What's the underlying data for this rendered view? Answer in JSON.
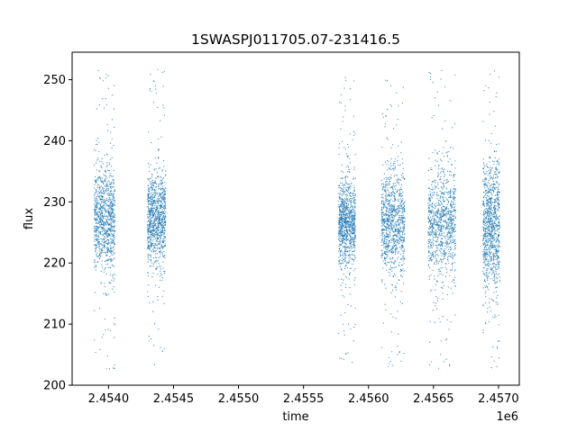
{
  "chart_data": {
    "type": "scatter",
    "title": "1SWASPJ011705.07-231416.5",
    "xlabel": "time",
    "ylabel": "flux",
    "x_offset_label": "1e6",
    "xlim": [
      2453720,
      2457160
    ],
    "ylim": [
      200,
      254.5
    ],
    "x_ticks": [
      2454000,
      2454500,
      2455000,
      2455500,
      2456000,
      2456500,
      2457000
    ],
    "x_tick_labels": [
      "2.4540",
      "2.4545",
      "2.4550",
      "2.4555",
      "2.4560",
      "2.4565",
      "2.4570"
    ],
    "y_ticks": [
      200,
      210,
      220,
      230,
      240,
      250
    ],
    "y_tick_labels": [
      "200",
      "210",
      "220",
      "230",
      "240",
      "250"
    ],
    "grid": false,
    "point_color": "#1f77b4",
    "series": [
      {
        "x_range": [
          2453890,
          2454050
        ],
        "y_center": 227,
        "y_core": [
          219,
          236
        ],
        "y_extent": [
          202.5,
          252
        ]
      },
      {
        "x_range": [
          2454300,
          2454440
        ],
        "y_center": 227,
        "y_core": [
          219,
          234
        ],
        "y_extent": [
          202.5,
          252
        ]
      },
      {
        "x_range": [
          2455770,
          2455900
        ],
        "y_center": 226.5,
        "y_core": [
          219,
          233
        ],
        "y_extent": [
          203,
          251
        ]
      },
      {
        "x_range": [
          2456100,
          2456280
        ],
        "y_center": 226.5,
        "y_core": [
          218,
          235
        ],
        "y_extent": [
          202.5,
          252
        ]
      },
      {
        "x_range": [
          2456460,
          2456670
        ],
        "y_center": 226.5,
        "y_core": [
          218,
          236
        ],
        "y_extent": [
          202.5,
          252
        ]
      },
      {
        "x_range": [
          2456880,
          2457010
        ],
        "y_center": 226,
        "y_core": [
          217,
          237
        ],
        "y_extent": [
          202.5,
          252
        ]
      }
    ]
  }
}
